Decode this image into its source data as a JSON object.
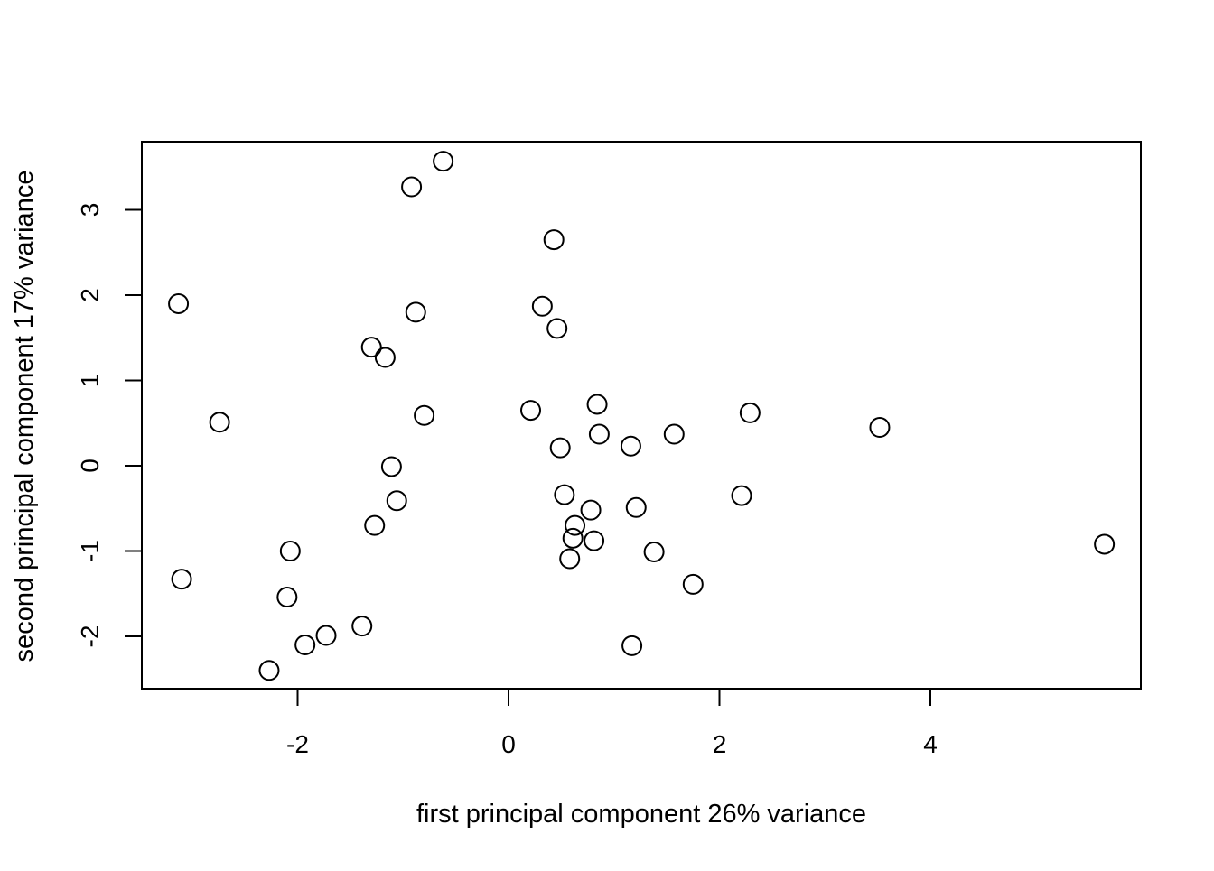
{
  "chart_data": {
    "type": "scatter",
    "title": "",
    "xlabel": "first principal component 26% variance",
    "ylabel": "second principal component 17% variance",
    "xlim": [
      -3.5,
      6.0
    ],
    "ylim": [
      -2.6,
      3.8
    ],
    "x_ticks": [
      -2,
      0,
      2,
      4
    ],
    "x_tick_labels": [
      "-2",
      "0",
      "2",
      "4"
    ],
    "y_ticks": [
      -2,
      -1,
      0,
      1,
      2,
      3
    ],
    "y_tick_labels": [
      "-2",
      "-1",
      "0",
      "1",
      "2",
      "3"
    ],
    "grid": false,
    "marker": "open-circle",
    "points": [
      {
        "x": -0.62,
        "y": 3.57
      },
      {
        "x": -0.92,
        "y": 3.27
      },
      {
        "x": 0.43,
        "y": 2.65
      },
      {
        "x": -3.13,
        "y": 1.9
      },
      {
        "x": 0.32,
        "y": 1.87
      },
      {
        "x": -0.88,
        "y": 1.8
      },
      {
        "x": 0.46,
        "y": 1.61
      },
      {
        "x": -1.3,
        "y": 1.39
      },
      {
        "x": -1.17,
        "y": 1.27
      },
      {
        "x": 0.84,
        "y": 0.72
      },
      {
        "x": 0.21,
        "y": 0.65
      },
      {
        "x": 2.29,
        "y": 0.62
      },
      {
        "x": -0.8,
        "y": 0.59
      },
      {
        "x": -2.74,
        "y": 0.51
      },
      {
        "x": 3.52,
        "y": 0.45
      },
      {
        "x": 0.86,
        "y": 0.37
      },
      {
        "x": 1.57,
        "y": 0.37
      },
      {
        "x": 1.16,
        "y": 0.23
      },
      {
        "x": 0.49,
        "y": 0.21
      },
      {
        "x": -1.11,
        "y": -0.01
      },
      {
        "x": 0.53,
        "y": -0.34
      },
      {
        "x": 2.21,
        "y": -0.35
      },
      {
        "x": -1.06,
        "y": -0.41
      },
      {
        "x": 1.21,
        "y": -0.49
      },
      {
        "x": 0.78,
        "y": -0.52
      },
      {
        "x": -1.27,
        "y": -0.7
      },
      {
        "x": 0.63,
        "y": -0.7
      },
      {
        "x": 0.61,
        "y": -0.85
      },
      {
        "x": 0.81,
        "y": -0.88
      },
      {
        "x": 5.65,
        "y": -0.92
      },
      {
        "x": -2.07,
        "y": -1.0
      },
      {
        "x": 1.38,
        "y": -1.01
      },
      {
        "x": 0.58,
        "y": -1.09
      },
      {
        "x": -3.1,
        "y": -1.33
      },
      {
        "x": 1.75,
        "y": -1.39
      },
      {
        "x": -2.1,
        "y": -1.54
      },
      {
        "x": -1.39,
        "y": -1.88
      },
      {
        "x": -1.73,
        "y": -1.99
      },
      {
        "x": -1.93,
        "y": -2.1
      },
      {
        "x": 1.17,
        "y": -2.11
      },
      {
        "x": -2.27,
        "y": -2.4
      }
    ]
  }
}
